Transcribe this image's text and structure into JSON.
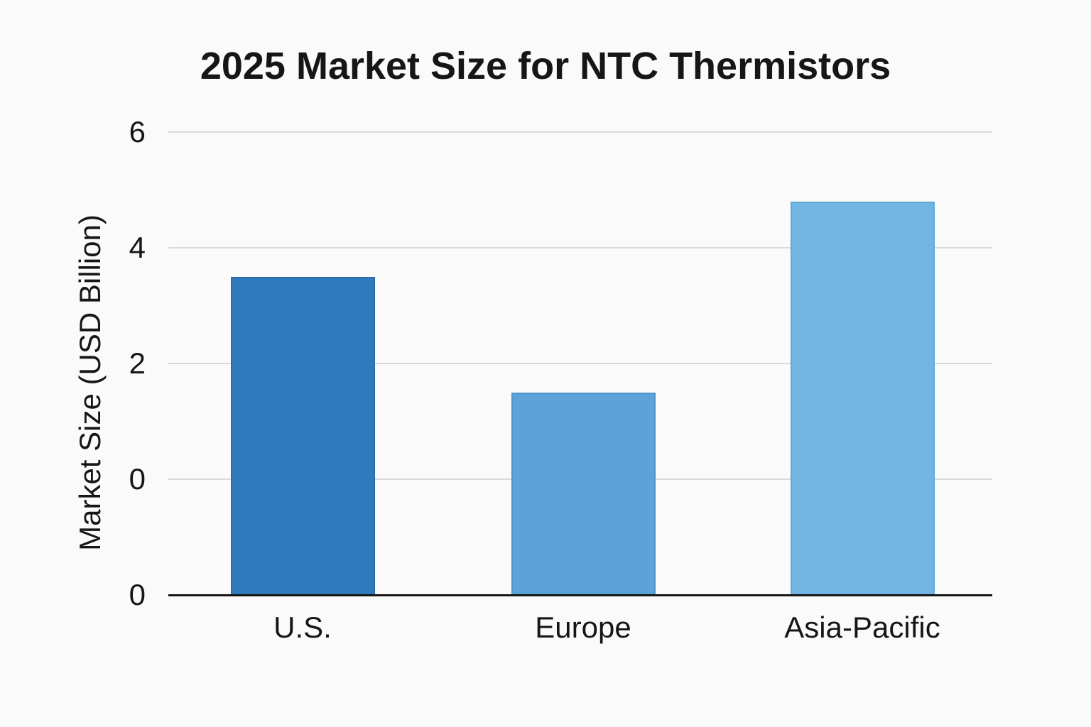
{
  "chart_data": {
    "type": "bar",
    "title": "2025 Market Size for NTC Thermistors",
    "ylabel": "Market Size (USD Billion)",
    "xlabel": "",
    "categories": [
      "U.S.",
      "Europe",
      "Asia-Pacific"
    ],
    "values": [
      3.5,
      1.5,
      4.8
    ],
    "y_tick_labels": [
      "6",
      "4",
      "2",
      "0",
      "0"
    ],
    "y_gridline_values": [
      6,
      4,
      2,
      0
    ],
    "ylim": [
      -2,
      6
    ],
    "grid": "horizontal",
    "legend": "none",
    "bar_colors": [
      "#2f7abc",
      "#5ba3d9",
      "#71b5e3"
    ],
    "bar_border_colors": [
      "#2a6ea9",
      "#5095c8",
      "#66a8d3"
    ],
    "background_color": "#fafafa",
    "gridline_color": "#d9d9da",
    "axis_line_color": "#161616",
    "text_color": "#161616"
  }
}
